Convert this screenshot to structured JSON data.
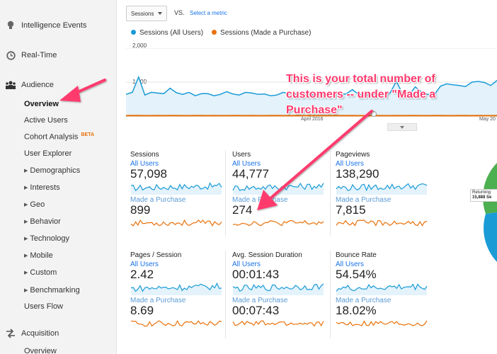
{
  "sidebar": {
    "intelligence_events": "Intelligence Events",
    "real_time": "Real-Time",
    "audience": "Audience",
    "acquisition": "Acquisition",
    "audience_items": {
      "overview": "Overview",
      "active_users": "Active Users",
      "cohort_analysis": "Cohort Analysis",
      "cohort_beta": "BETA",
      "user_explorer": "User Explorer",
      "demographics": "Demographics",
      "interests": "Interests",
      "geo": "Geo",
      "behavior": "Behavior",
      "technology": "Technology",
      "mobile": "Mobile",
      "custom": "Custom",
      "benchmarking": "Benchmarking",
      "users_flow": "Users Flow"
    },
    "acquisition_overview": "Overview"
  },
  "toolbar": {
    "metric_dropdown": "Sessions",
    "vs": "VS.",
    "select_metric": "Select a metric"
  },
  "chart": {
    "legend_all": "Sessions (All Users)",
    "legend_purchase": "Sessions (Made a Purchase)",
    "y_top": "2,000",
    "y_mid": "1,000",
    "x_april": "April 2016",
    "x_may": "May 20",
    "colors": {
      "all": "#1a9bd6",
      "purchase": "#e8710a",
      "fill": "#e3f2fb"
    }
  },
  "chart_data": {
    "type": "line",
    "ylim": [
      0,
      2000
    ],
    "series": [
      {
        "name": "Sessions (All Users)",
        "values": [
          640,
          700,
          1150,
          620,
          700,
          680,
          660,
          820,
          690,
          640,
          700,
          600,
          660,
          660,
          600,
          640,
          720,
          650,
          620,
          700,
          680,
          640,
          650,
          600,
          620,
          700,
          660,
          650,
          700,
          640,
          620,
          650,
          620,
          700,
          640,
          650,
          780,
          640,
          610,
          660,
          640,
          620,
          680,
          1030,
          640,
          620,
          860,
          700,
          640,
          620,
          880,
          950,
          920,
          900,
          870,
          1000,
          1020,
          990,
          900,
          1050
        ]
      },
      {
        "name": "Sessions (Made a Purchase)",
        "values": [
          12,
          14,
          15,
          13,
          12,
          14,
          13,
          14,
          16,
          12,
          13,
          14,
          15,
          12,
          14,
          13,
          12,
          14,
          15,
          13,
          14,
          12,
          13,
          15,
          14,
          13,
          12,
          14,
          13,
          15,
          14,
          12,
          13,
          14,
          15,
          12,
          14,
          13,
          12,
          15,
          14,
          13,
          12,
          14,
          13,
          15,
          14,
          12,
          13,
          14,
          15,
          13,
          12,
          14,
          15,
          13,
          14,
          12,
          13,
          14
        ]
      }
    ]
  },
  "cards": [
    {
      "title": "Sessions",
      "seg_all": "All Users",
      "val_all": "57,098",
      "seg_purchase": "Made a Purchase",
      "val_purchase": "899"
    },
    {
      "title": "Users",
      "seg_all": "All Users",
      "val_all": "44,777",
      "seg_purchase": "Made a Purchase",
      "val_purchase": "274"
    },
    {
      "title": "Pageviews",
      "seg_all": "All Users",
      "val_all": "138,290",
      "seg_purchase": "Made a Purchase",
      "val_purchase": "7,815"
    },
    {
      "title": "Pages / Session",
      "seg_all": "All Users",
      "val_all": "2.42",
      "seg_purchase": "Made a Purchase",
      "val_purchase": "8.69"
    },
    {
      "title": "Avg. Session Duration",
      "seg_all": "All Users",
      "val_all": "00:01:43",
      "seg_purchase": "Made a Purchase",
      "val_purchase": "00:07:43"
    },
    {
      "title": "Bounce Rate",
      "seg_all": "All Users",
      "val_all": "54.54%",
      "seg_purchase": "Made a Purchase",
      "val_purchase": "18.02%"
    }
  ],
  "annotation": {
    "line1": "This is your total number of",
    "line2": "customers -- under \"Made a",
    "line3": "Purchase\"",
    "color": "#ff3a6e"
  },
  "pie": {
    "label_line1": "Returning",
    "label_line2": "15,888 Se",
    "colors": {
      "green": "#4caf50",
      "blue": "#1a9bd6"
    }
  }
}
